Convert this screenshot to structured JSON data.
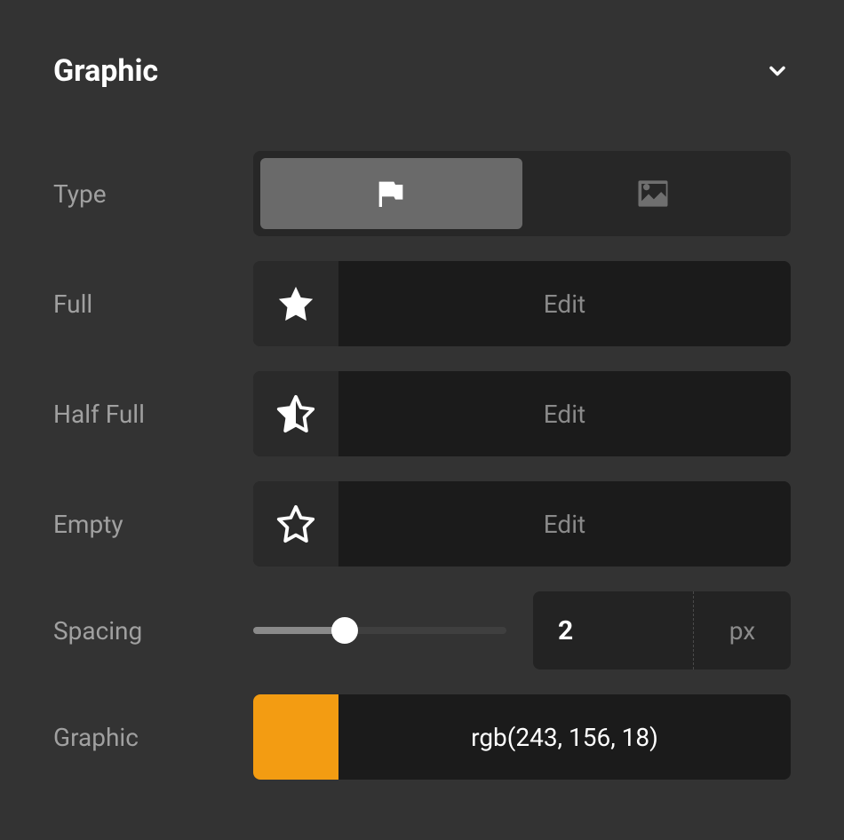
{
  "panel": {
    "title": "Graphic"
  },
  "type": {
    "label": "Type",
    "selected_index": 0,
    "options": [
      {
        "icon": "flag"
      },
      {
        "icon": "image"
      }
    ]
  },
  "states": {
    "full": {
      "label": "Full",
      "edit_label": "Edit",
      "icon": "star-full"
    },
    "half": {
      "label": "Half Full",
      "edit_label": "Edit",
      "icon": "star-half"
    },
    "empty": {
      "label": "Empty",
      "edit_label": "Edit",
      "icon": "star-empty"
    }
  },
  "spacing": {
    "label": "Spacing",
    "value": "2",
    "unit": "px",
    "slider_percent": 36
  },
  "graphic_color": {
    "label": "Graphic",
    "hex": "#f39c12",
    "text": "rgb(243, 156, 18)"
  },
  "colors": {
    "panel_bg": "#333333",
    "control_bg": "#232323",
    "control_bg_dark": "#1b1b1b",
    "selected_bg": "#6a6a6a",
    "label_color": "#a0a0a0",
    "muted_text": "#8a8a8a",
    "icon_muted": "#6f6f6f",
    "icon_white": "#ffffff"
  }
}
